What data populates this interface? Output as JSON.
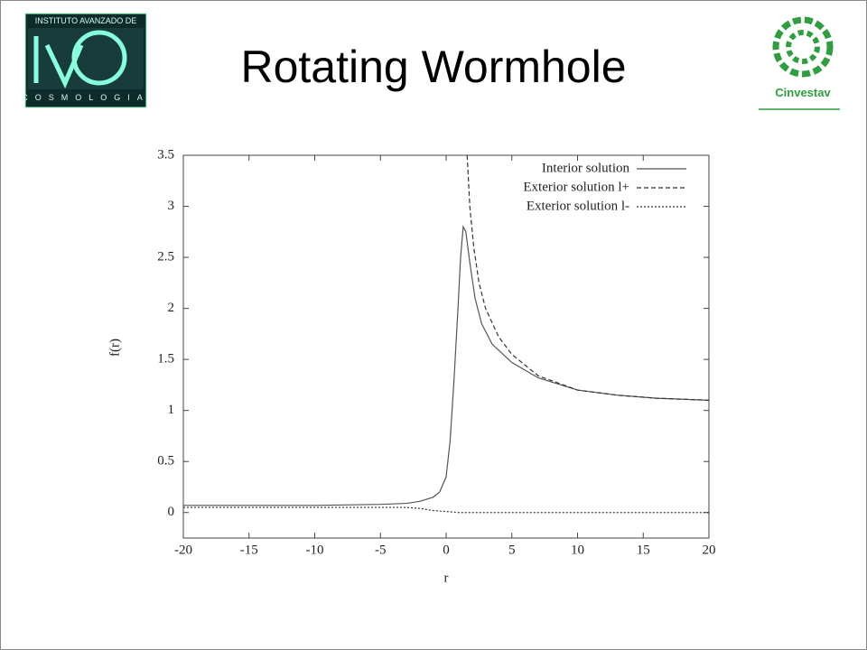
{
  "logos": {
    "left_top": "INSTITUTO AVANZADO DE",
    "left_bottom": "COSMOLOGIA",
    "right": "Cinvestav"
  },
  "chart_data": {
    "type": "line",
    "title": "Rotating Wormhole",
    "x_label": "r",
    "y_label": "f(r)",
    "xlim": [
      -20,
      20
    ],
    "ylim": [
      -0.25,
      3.5
    ],
    "xticks": [
      -20,
      -15,
      -10,
      -5,
      0,
      5,
      10,
      15,
      20
    ],
    "yticks": [
      0,
      0.5,
      1,
      1.5,
      2,
      2.5,
      3,
      3.5
    ],
    "legend": "upper right",
    "series": [
      {
        "name": "Interior solution",
        "color": "#555555",
        "style": "solid",
        "x": [
          -20,
          -15,
          -10,
          -5,
          -3,
          -2,
          -1,
          -0.5,
          0,
          0.3,
          0.6,
          0.9,
          1.1,
          1.3,
          1.5,
          1.8,
          2.2,
          2.7,
          3.5,
          5,
          7,
          10,
          13,
          16,
          20
        ],
        "values": [
          0.07,
          0.07,
          0.07,
          0.08,
          0.09,
          0.11,
          0.15,
          0.2,
          0.35,
          0.7,
          1.3,
          2.0,
          2.5,
          2.8,
          2.75,
          2.45,
          2.1,
          1.85,
          1.65,
          1.47,
          1.32,
          1.2,
          1.15,
          1.12,
          1.1
        ]
      },
      {
        "name": "Exterior solution l+",
        "color": "#333333",
        "style": "dashed",
        "x": [
          1.6,
          1.8,
          2.1,
          2.5,
          3,
          4,
          5,
          7,
          10,
          13,
          16,
          20
        ],
        "values": [
          3.5,
          3.0,
          2.6,
          2.25,
          2.0,
          1.72,
          1.55,
          1.34,
          1.2,
          1.15,
          1.12,
          1.1
        ]
      },
      {
        "name": "Exterior solution l-",
        "color": "#333333",
        "style": "dotted",
        "x": [
          -20,
          -10,
          -5,
          -3,
          -2,
          -1,
          0,
          1,
          5,
          10,
          20
        ],
        "values": [
          0.05,
          0.05,
          0.05,
          0.05,
          0.04,
          0.02,
          0.01,
          0,
          0,
          0,
          0
        ]
      }
    ]
  }
}
